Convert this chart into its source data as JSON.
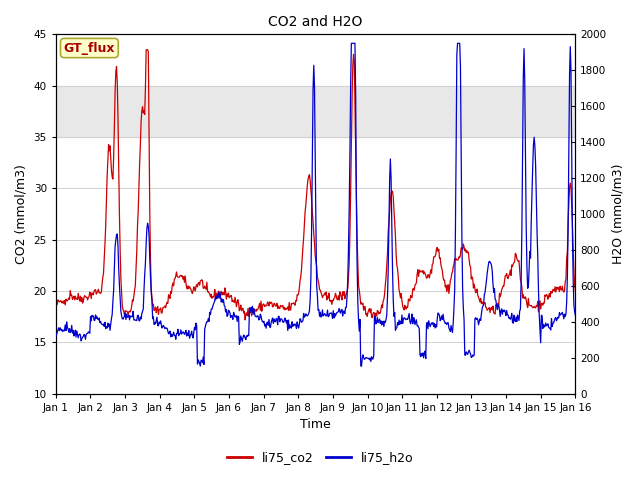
{
  "title": "CO2 and H2O",
  "xlabel": "Time",
  "ylabel_left": "CO2 (mmol/m3)",
  "ylabel_right": "H2O (mmol/m3)",
  "ylim_left": [
    10,
    45
  ],
  "ylim_right": [
    0,
    2000
  ],
  "yticks_left": [
    10,
    15,
    20,
    25,
    30,
    35,
    40,
    45
  ],
  "yticks_right": [
    0,
    200,
    400,
    600,
    800,
    1000,
    1200,
    1400,
    1600,
    1800,
    2000
  ],
  "xtick_labels": [
    "Jan 1",
    "Jan 2",
    "Jan 3",
    "Jan 4",
    "Jan 5",
    "Jan 6",
    "Jan 7",
    "Jan 8",
    "Jan 9",
    "Jan 10",
    "Jan 11",
    "Jan 12",
    "Jan 13",
    "Jan 14",
    "Jan 15",
    "Jan 16"
  ],
  "color_co2": "#cc0000",
  "color_h2o": "#0000cc",
  "legend_label_co2": "li75_co2",
  "legend_label_h2o": "li75_h2o",
  "annotation_text": "GT_flux",
  "annotation_bg": "#ffffcc",
  "annotation_border": "#aaa830",
  "shading_color": "#e8e8e8",
  "shading_ranges_left": [
    [
      35.0,
      40.0
    ]
  ],
  "background_color": "#ffffff",
  "figsize": [
    6.4,
    4.8
  ],
  "dpi": 100
}
